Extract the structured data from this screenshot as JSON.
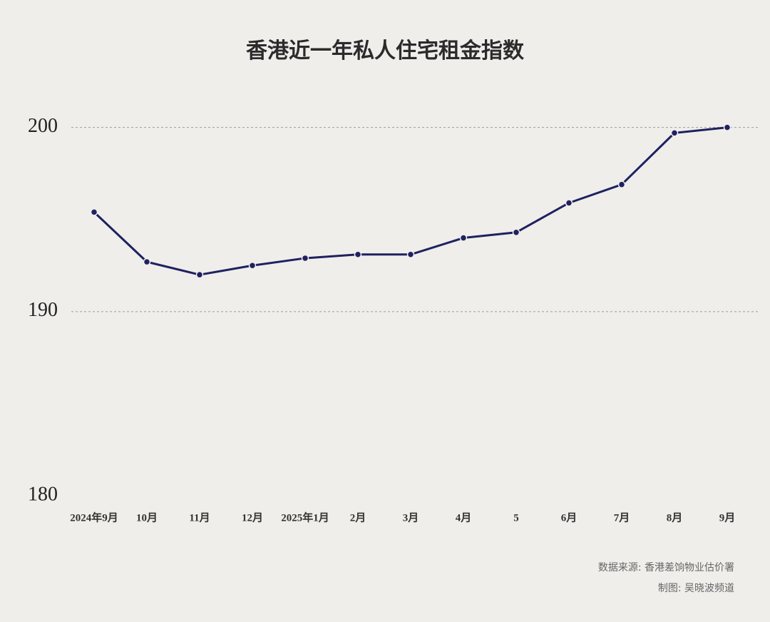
{
  "chart_data": {
    "type": "line",
    "title": "香港近一年私人住宅租金指数",
    "categories": [
      "2024年9月",
      "10月",
      "11月",
      "12月",
      "2025年1月",
      "2月",
      "3月",
      "4月",
      "5",
      "6月",
      "7月",
      "8月",
      "9月"
    ],
    "series": [
      {
        "name": "私人住宅租金指数",
        "color": "#1f2160",
        "values": [
          195.4,
          192.7,
          192.0,
          192.5,
          192.9,
          193.1,
          193.1,
          194.0,
          194.3,
          195.9,
          196.9,
          199.7,
          200.0
        ]
      }
    ],
    "ylim": [
      180,
      202
    ],
    "yticks": [
      180,
      190,
      200
    ],
    "grid": true,
    "source": "数据来源: 香港差饷物业估价署",
    "credit": "制图: 吴晓波频道"
  }
}
